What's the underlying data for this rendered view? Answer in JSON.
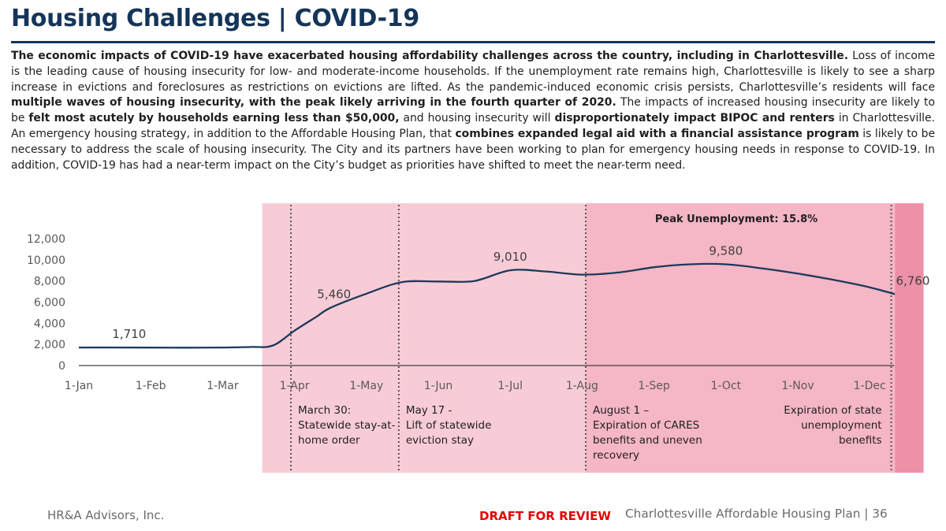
{
  "header": {
    "title": "Housing Challenges | COVID-19"
  },
  "body": {
    "segments": [
      {
        "bold": true,
        "text": "The economic impacts of COVID-19 have exacerbated housing affordability challenges across the country, including in Charlottesville."
      },
      {
        "bold": false,
        "text": " Loss of income is the leading cause of housing insecurity for low- and moderate-income households. If the unemployment rate remains high, Charlottesville is likely to see a sharp increase in evictions and foreclosures as restrictions on evictions are lifted. As the pandemic-induced economic crisis persists, Charlottesville’s residents will face "
      },
      {
        "bold": true,
        "text": "multiple waves of housing insecurity, with the peak likely arriving in the fourth quarter of 2020."
      },
      {
        "bold": false,
        "text": " The impacts of increased housing insecurity are likely to be "
      },
      {
        "bold": true,
        "text": "felt most acutely by households earning less than $50,000,"
      },
      {
        "bold": false,
        "text": " and housing insecurity will "
      },
      {
        "bold": true,
        "text": "disproportionately impact BIPOC and renters"
      },
      {
        "bold": false,
        "text": " in Charlottesville. An emergency housing strategy, in addition to the Affordable Housing Plan, that "
      },
      {
        "bold": true,
        "text": "combines expanded legal aid with a financial assistance program"
      },
      {
        "bold": false,
        "text": " is likely to be necessary to address the scale of housing insecurity. The City and its partners have been working to plan for emergency housing needs in response to COVID-19. In addition, COVID-19 has had a near-term impact on the City’s budget as priorities have shifted to meet the near-term need."
      }
    ]
  },
  "chart_data": {
    "type": "line",
    "title": "",
    "xlabel": "",
    "ylabel": "",
    "ylim": [
      0,
      12000
    ],
    "yticks": [
      "12,000",
      "10,000",
      "8,000",
      "6,000",
      "4,000",
      "2,000",
      "0"
    ],
    "ytick_values": [
      12000,
      10000,
      8000,
      6000,
      4000,
      2000,
      0
    ],
    "categories": [
      "1-Jan",
      "1-Feb",
      "1-Mar",
      "1-Apr",
      "1-May",
      "1-Jun",
      "1-Jul",
      "1-Aug",
      "1-Sep",
      "1-Oct",
      "1-Nov",
      "1-Dec"
    ],
    "x_range": [
      0,
      12
    ],
    "series": [
      {
        "name": "",
        "color": "#1b3a5c",
        "x": [
          0,
          0.5,
          1,
          1.5,
          2,
          2.4,
          2.7,
          3.0,
          3.3,
          3.5,
          4.0,
          4.5,
          5.0,
          5.5,
          6.0,
          6.5,
          7.0,
          7.5,
          8.0,
          8.5,
          9.0,
          9.5,
          10.0,
          10.5,
          11.0,
          11.35
        ],
        "values": [
          1710,
          1710,
          1700,
          1690,
          1710,
          1760,
          1900,
          3300,
          4600,
          5460,
          6800,
          7900,
          7950,
          8000,
          9010,
          8900,
          8600,
          8800,
          9300,
          9580,
          9580,
          9200,
          8700,
          8100,
          7400,
          6760
        ]
      }
    ],
    "data_labels": [
      {
        "x": 0.7,
        "y": 1710,
        "text": "1,710"
      },
      {
        "x": 3.55,
        "y": 5460,
        "text": "5,460"
      },
      {
        "x": 6.0,
        "y": 9010,
        "text": "9,010"
      },
      {
        "x": 9.0,
        "y": 9580,
        "text": "9,580"
      },
      {
        "x": 11.6,
        "y": 6760,
        "text": "6,760"
      }
    ],
    "phases": [
      {
        "x_start": 2.55,
        "x_end": 7.05,
        "color": "#f8ccd6"
      },
      {
        "x_start": 7.05,
        "x_end": 11.35,
        "color": "#f5b6c6"
      },
      {
        "x_start": 11.35,
        "x_end": 11.75,
        "color": "#ee90a8"
      }
    ],
    "events": [
      {
        "x": 2.95,
        "label": [
          "March 30:",
          "Statewide stay-at-",
          "home order"
        ],
        "align": "left"
      },
      {
        "x": 4.45,
        "label": [
          "May 17 -",
          "Lift of statewide",
          "eviction stay"
        ],
        "align": "left"
      },
      {
        "x": 7.05,
        "label": [
          "August 1 –",
          "Expiration of CARES",
          "benefits and uneven",
          "recovery"
        ],
        "align": "left"
      },
      {
        "x": 11.3,
        "label": [
          "Expiration of state",
          "unemployment",
          "benefits"
        ],
        "align": "right"
      }
    ],
    "annotations": [
      {
        "text": "Peak Unemployment: 15.8%"
      }
    ]
  },
  "footer": {
    "left": "HR&A Advisors, Inc.",
    "draft": "DRAFT FOR REVIEW",
    "right": "Charlottesville Affordable Housing Plan | 36"
  }
}
